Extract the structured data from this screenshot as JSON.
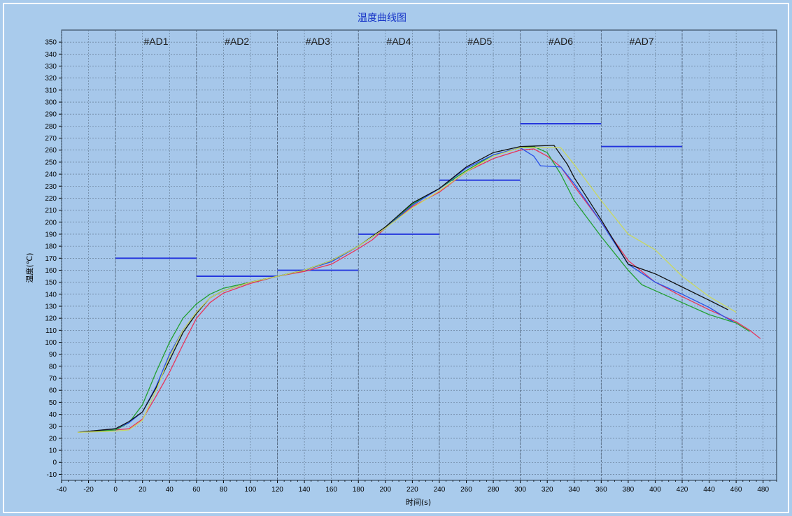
{
  "chart_data": {
    "type": "line",
    "title": "温度曲线图",
    "xlabel": "时间(s)",
    "ylabel": "温度(℃)",
    "xlim": [
      -40,
      490
    ],
    "ylim": [
      -15,
      360
    ],
    "x_ticks": [
      -40,
      -20,
      0,
      20,
      40,
      60,
      80,
      100,
      120,
      140,
      160,
      180,
      200,
      220,
      240,
      260,
      280,
      300,
      320,
      340,
      360,
      380,
      400,
      420,
      440,
      460,
      480
    ],
    "y_ticks": [
      -10,
      0,
      10,
      20,
      30,
      40,
      50,
      60,
      70,
      80,
      90,
      100,
      110,
      120,
      130,
      140,
      150,
      160,
      170,
      180,
      190,
      200,
      210,
      220,
      230,
      240,
      250,
      260,
      270,
      280,
      290,
      300,
      310,
      320,
      330,
      340,
      350
    ],
    "grid": true,
    "zone_boundaries": [
      0,
      60,
      120,
      180,
      240,
      300,
      360,
      420
    ],
    "zones": [
      {
        "label": "#AD1",
        "x_center": 30,
        "setpoint": 170
      },
      {
        "label": "#AD2",
        "x_center": 90,
        "setpoint": 155
      },
      {
        "label": "#AD3",
        "x_center": 150,
        "setpoint": 160
      },
      {
        "label": "#AD4",
        "x_center": 210,
        "setpoint": 190
      },
      {
        "label": "#AD5",
        "x_center": 270,
        "setpoint": 235
      },
      {
        "label": "#AD6",
        "x_center": 330,
        "setpoint": 282
      },
      {
        "label": "#AD7",
        "x_center": 390,
        "setpoint": 263
      }
    ],
    "setpoint_color": "#2233dd",
    "series": [
      {
        "color": "#e8345a",
        "points": [
          [
            -28,
            25
          ],
          [
            0,
            27
          ],
          [
            10,
            28
          ],
          [
            20,
            36
          ],
          [
            30,
            55
          ],
          [
            40,
            75
          ],
          [
            50,
            98
          ],
          [
            60,
            120
          ],
          [
            70,
            133
          ],
          [
            80,
            141
          ],
          [
            100,
            149
          ],
          [
            120,
            155
          ],
          [
            140,
            159
          ],
          [
            160,
            165
          ],
          [
            180,
            178
          ],
          [
            190,
            185
          ],
          [
            200,
            195
          ],
          [
            220,
            213
          ],
          [
            240,
            225
          ],
          [
            260,
            242
          ],
          [
            280,
            253
          ],
          [
            300,
            260
          ],
          [
            310,
            261
          ],
          [
            320,
            255
          ],
          [
            330,
            246
          ],
          [
            340,
            230
          ],
          [
            360,
            200
          ],
          [
            380,
            168
          ],
          [
            400,
            150
          ],
          [
            420,
            138
          ],
          [
            440,
            127
          ],
          [
            460,
            117
          ],
          [
            470,
            110
          ],
          [
            478,
            103
          ]
        ]
      },
      {
        "color": "#22a030",
        "points": [
          [
            -28,
            25
          ],
          [
            0,
            27
          ],
          [
            10,
            33
          ],
          [
            20,
            48
          ],
          [
            30,
            75
          ],
          [
            40,
            100
          ],
          [
            50,
            120
          ],
          [
            60,
            132
          ],
          [
            70,
            140
          ],
          [
            80,
            145
          ],
          [
            100,
            150
          ],
          [
            120,
            155
          ],
          [
            140,
            160
          ],
          [
            160,
            168
          ],
          [
            180,
            180
          ],
          [
            200,
            195
          ],
          [
            220,
            215
          ],
          [
            240,
            228
          ],
          [
            260,
            243
          ],
          [
            280,
            256
          ],
          [
            300,
            262
          ],
          [
            310,
            263
          ],
          [
            320,
            258
          ],
          [
            330,
            240
          ],
          [
            340,
            218
          ],
          [
            360,
            188
          ],
          [
            380,
            160
          ],
          [
            390,
            148
          ],
          [
            400,
            143
          ],
          [
            420,
            133
          ],
          [
            440,
            123
          ],
          [
            460,
            116
          ],
          [
            470,
            109
          ]
        ]
      },
      {
        "color": "#2a50e8",
        "points": [
          [
            -28,
            25
          ],
          [
            0,
            28
          ],
          [
            10,
            33
          ],
          [
            20,
            42
          ],
          [
            30,
            63
          ],
          [
            40,
            90
          ],
          [
            50,
            110
          ],
          [
            60,
            125
          ],
          [
            70,
            137
          ],
          [
            80,
            143
          ],
          [
            100,
            150
          ],
          [
            120,
            155
          ],
          [
            140,
            160
          ],
          [
            160,
            167
          ],
          [
            180,
            180
          ],
          [
            200,
            195
          ],
          [
            220,
            214
          ],
          [
            240,
            228
          ],
          [
            260,
            245
          ],
          [
            280,
            256
          ],
          [
            300,
            262
          ],
          [
            310,
            255
          ],
          [
            315,
            247
          ],
          [
            330,
            246
          ],
          [
            340,
            232
          ],
          [
            360,
            200
          ],
          [
            380,
            165
          ],
          [
            400,
            150
          ],
          [
            420,
            140
          ],
          [
            440,
            129
          ],
          [
            450,
            122
          ],
          [
            458,
            117
          ]
        ]
      },
      {
        "color": "#111111",
        "points": [
          [
            -28,
            25
          ],
          [
            0,
            28
          ],
          [
            10,
            34
          ],
          [
            20,
            42
          ],
          [
            30,
            62
          ],
          [
            40,
            85
          ],
          [
            50,
            108
          ],
          [
            60,
            124
          ],
          [
            70,
            137
          ],
          [
            80,
            143
          ],
          [
            100,
            150
          ],
          [
            120,
            155
          ],
          [
            140,
            160
          ],
          [
            160,
            168
          ],
          [
            180,
            180
          ],
          [
            200,
            196
          ],
          [
            220,
            216
          ],
          [
            240,
            228
          ],
          [
            260,
            246
          ],
          [
            280,
            258
          ],
          [
            300,
            263
          ],
          [
            325,
            264
          ],
          [
            335,
            248
          ],
          [
            340,
            237
          ],
          [
            360,
            202
          ],
          [
            380,
            165
          ],
          [
            400,
            157
          ],
          [
            420,
            146
          ],
          [
            440,
            135
          ],
          [
            454,
            127
          ]
        ]
      },
      {
        "color": "#c9d860",
        "points": [
          [
            -28,
            25
          ],
          [
            0,
            26
          ],
          [
            10,
            27
          ],
          [
            20,
            35
          ],
          [
            30,
            60
          ],
          [
            40,
            88
          ],
          [
            50,
            110
          ],
          [
            60,
            125
          ],
          [
            70,
            137
          ],
          [
            80,
            143
          ],
          [
            100,
            150
          ],
          [
            120,
            155
          ],
          [
            140,
            160
          ],
          [
            160,
            168
          ],
          [
            180,
            180
          ],
          [
            200,
            195
          ],
          [
            220,
            212
          ],
          [
            240,
            226
          ],
          [
            260,
            242
          ],
          [
            280,
            255
          ],
          [
            300,
            262
          ],
          [
            330,
            262
          ],
          [
            340,
            248
          ],
          [
            360,
            218
          ],
          [
            380,
            190
          ],
          [
            400,
            177
          ],
          [
            420,
            155
          ],
          [
            440,
            138
          ],
          [
            460,
            125
          ]
        ]
      }
    ]
  }
}
